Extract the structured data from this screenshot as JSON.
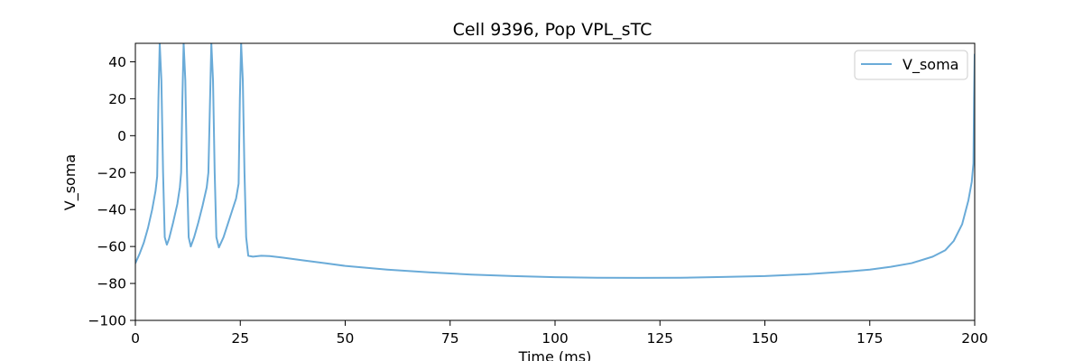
{
  "chart_data": {
    "type": "line",
    "title": "Cell 9396, Pop VPL_sTC",
    "xlabel": "Time (ms)",
    "ylabel": "V_soma",
    "xlim": [
      0,
      200
    ],
    "ylim": [
      -100,
      50
    ],
    "x_ticks": [
      0,
      25,
      50,
      75,
      100,
      125,
      150,
      175,
      200
    ],
    "y_ticks": [
      -100,
      -80,
      -60,
      -40,
      -20,
      0,
      20,
      40
    ],
    "x_tick_labels": [
      "0",
      "25",
      "50",
      "75",
      "100",
      "125",
      "150",
      "175",
      "200"
    ],
    "y_tick_labels": [
      "−100",
      "−80",
      "−60",
      "−40",
      "−20",
      "0",
      "20",
      "40"
    ],
    "legend_position": "top-right",
    "grid": false,
    "series": [
      {
        "name": "V_soma",
        "color": "#6aabd8",
        "points": [
          [
            0,
            -69
          ],
          [
            1,
            -64
          ],
          [
            2,
            -58
          ],
          [
            3,
            -50
          ],
          [
            4,
            -40
          ],
          [
            4.8,
            -30
          ],
          [
            5.2,
            -22
          ],
          [
            5.5,
            20
          ],
          [
            5.8,
            50
          ],
          [
            6.2,
            30
          ],
          [
            6.6,
            -20
          ],
          [
            7.0,
            -55
          ],
          [
            7.5,
            -59
          ],
          [
            8.0,
            -56
          ],
          [
            9.0,
            -47
          ],
          [
            10.0,
            -37
          ],
          [
            10.6,
            -28
          ],
          [
            10.9,
            -20
          ],
          [
            11.2,
            20
          ],
          [
            11.5,
            50
          ],
          [
            11.9,
            30
          ],
          [
            12.3,
            -20
          ],
          [
            12.7,
            -55
          ],
          [
            13.2,
            -60
          ],
          [
            14.0,
            -55
          ],
          [
            15.0,
            -47
          ],
          [
            16.0,
            -38
          ],
          [
            17.0,
            -28
          ],
          [
            17.4,
            -20
          ],
          [
            17.8,
            20
          ],
          [
            18.1,
            50
          ],
          [
            18.5,
            30
          ],
          [
            18.9,
            -20
          ],
          [
            19.3,
            -55
          ],
          [
            19.9,
            -60.5
          ],
          [
            21,
            -55
          ],
          [
            22,
            -48
          ],
          [
            23,
            -41
          ],
          [
            24,
            -34
          ],
          [
            24.6,
            -26
          ],
          [
            24.9,
            20
          ],
          [
            25.2,
            50
          ],
          [
            25.6,
            30
          ],
          [
            26.0,
            -20
          ],
          [
            26.4,
            -55
          ],
          [
            26.9,
            -65
          ],
          [
            28,
            -65.5
          ],
          [
            30,
            -65
          ],
          [
            32,
            -65.2
          ],
          [
            35,
            -66
          ],
          [
            40,
            -67.5
          ],
          [
            45,
            -69
          ],
          [
            50,
            -70.5
          ],
          [
            60,
            -72.5
          ],
          [
            70,
            -74
          ],
          [
            80,
            -75.2
          ],
          [
            90,
            -76
          ],
          [
            100,
            -76.6
          ],
          [
            110,
            -76.9
          ],
          [
            120,
            -77
          ],
          [
            130,
            -76.9
          ],
          [
            140,
            -76.5
          ],
          [
            150,
            -76
          ],
          [
            160,
            -75
          ],
          [
            170,
            -73.5
          ],
          [
            175,
            -72.5
          ],
          [
            180,
            -71
          ],
          [
            185,
            -69
          ],
          [
            190,
            -65.5
          ],
          [
            193,
            -62
          ],
          [
            195,
            -57
          ],
          [
            197,
            -48
          ],
          [
            198.5,
            -35
          ],
          [
            199.3,
            -25
          ],
          [
            199.7,
            -15
          ],
          [
            199.85,
            20
          ],
          [
            200,
            44
          ]
        ]
      }
    ]
  }
}
